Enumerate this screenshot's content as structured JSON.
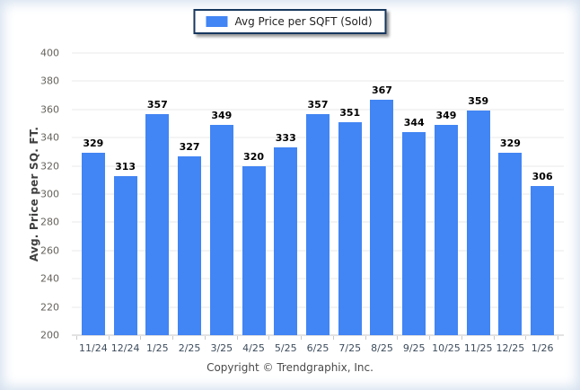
{
  "legend": {
    "label": "Avg Price per SQFT (Sold)"
  },
  "footer": {
    "text": "Copyright © Trendgraphix, Inc."
  },
  "colors": {
    "bar": "#4285F4",
    "grid": "#e8e8e8",
    "axis": "#c4c4c4",
    "legend_border": "#17375e",
    "value_label": "#000000",
    "x_tick": "#3d4c5c",
    "y_tick": "#66625c",
    "edge_vignette": "#d3dfee"
  },
  "chart_data": {
    "type": "bar",
    "title": "Avg Price per SQFT (Sold)",
    "categories": [
      "11/24",
      "12/24",
      "1/25",
      "2/25",
      "3/25",
      "4/25",
      "5/25",
      "6/25",
      "7/25",
      "8/25",
      "9/25",
      "10/25",
      "11/25",
      "12/25",
      "1/26"
    ],
    "values": [
      329,
      313,
      357,
      327,
      349,
      320,
      333,
      357,
      351,
      367,
      344,
      349,
      359,
      329,
      306
    ],
    "xlabel": "",
    "ylabel": "Avg. Price per SQ. FT.",
    "ylim": [
      200,
      400
    ],
    "ytick_step": 20,
    "grid": true,
    "bar_labels": true,
    "legend_position": "top-center"
  }
}
